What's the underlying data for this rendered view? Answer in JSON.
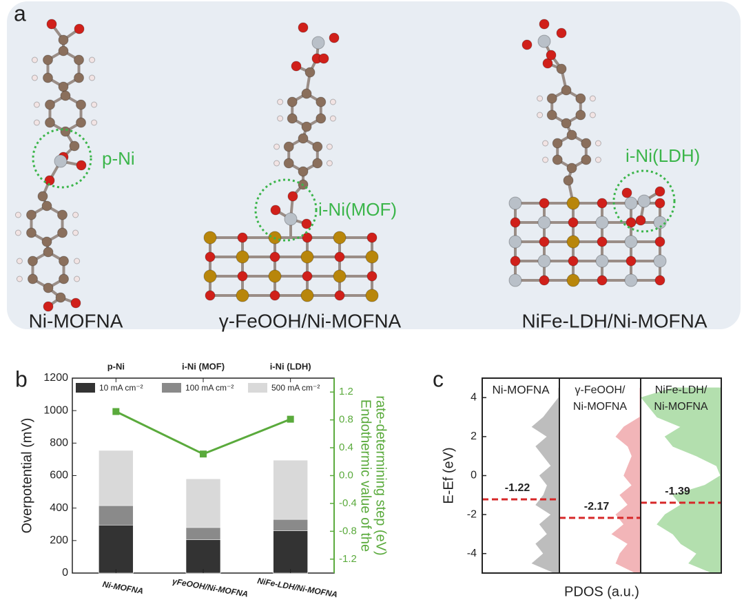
{
  "panel_a": {
    "letter": "a",
    "structures": [
      {
        "name": "Ni-MOFNA",
        "site": "p-Ni"
      },
      {
        "name": "γ-FeOOH/Ni-MOFNA",
        "site": "i-Ni(MOF)"
      },
      {
        "name": "NiFe-LDH/Ni-MOFNA",
        "site": "i-Ni(LDH)"
      }
    ]
  },
  "chart_data": [
    {
      "type": "bar",
      "panel": "b",
      "categories": [
        "Ni-MOFNA",
        "γFeOOH/Ni-MOFNA",
        "NiFe-LDH/Ni-MOFNA"
      ],
      "top_categories": [
        "p-Ni",
        "i-Ni (MOF)",
        "i-Ni (LDH)"
      ],
      "ylabel": "Overpotential (mV)",
      "y2label": [
        "Endothermic value of the",
        "rate-determining step (eV)"
      ],
      "ylim": [
        0,
        1200
      ],
      "yticks": [
        0,
        200,
        400,
        600,
        800,
        1000,
        1200
      ],
      "y2lim": [
        -1.4,
        1.4
      ],
      "y2ticks": [
        -1.2,
        -0.8,
        -0.4,
        {
          "value": 0,
          "label": "0.0"
        },
        0.4,
        0.8,
        1.2
      ],
      "series": [
        {
          "name": "10 mA cm⁻²",
          "color": "#333333",
          "values": [
            295,
            205,
            260
          ]
        },
        {
          "name": "100 mA cm⁻²",
          "color": "#8a8a8a",
          "values": [
            415,
            280,
            330
          ]
        },
        {
          "name": "500 mA cm⁻²",
          "color": "#d9d9d9",
          "values": [
            755,
            580,
            695
          ]
        }
      ],
      "line": {
        "color": "#5aaa3c",
        "axis": "y2",
        "values": [
          0.92,
          0.31,
          0.81
        ]
      }
    },
    {
      "type": "pdos",
      "panel": "c",
      "ylabel": "E-Ef (eV)",
      "xlabel": "PDOS (a.u.)",
      "ylim": [
        -5,
        5
      ],
      "yticks": [
        -4,
        -2,
        0,
        2,
        4
      ],
      "xlim": [
        0,
        1
      ],
      "energy": [
        -5,
        -4.5,
        -4,
        -3.5,
        -3,
        -2.5,
        -2,
        -1.5,
        -1,
        -0.5,
        0,
        0.5,
        1,
        1.5,
        2,
        2.5,
        3,
        3.5,
        4,
        4.5
      ],
      "series": [
        {
          "title": [
            "Ni-MOFNA"
          ],
          "color": "#bdbdbd",
          "d_band_center": -1.22,
          "values": [
            0.05,
            0.35,
            0.2,
            0.3,
            0.15,
            0.25,
            0.1,
            0.3,
            0.2,
            0.15,
            0.25,
            0.1,
            0.2,
            0.3,
            0.15,
            0.35,
            0.2,
            0.1,
            0,
            0
          ]
        },
        {
          "title": [
            "γ-FeOOH/",
            "Ni-MOFNA"
          ],
          "color": "#f2b5b8",
          "d_band_center": -2.17,
          "values": [
            0.05,
            0.3,
            0.25,
            0.15,
            0.35,
            0.2,
            0.3,
            0.15,
            0.25,
            0.1,
            0.2,
            0.15,
            0.1,
            0.15,
            0.3,
            0.2,
            0,
            0,
            0,
            0
          ]
        },
        {
          "title": [
            "NiFe-LDH/",
            "Ni-MOFNA"
          ],
          "color": "#b3dfae",
          "d_band_center": -1.39,
          "values": [
            0.1,
            0.4,
            0.3,
            0.5,
            0.6,
            0.8,
            0.7,
            0.5,
            0.6,
            0.2,
            0,
            0.05,
            0.3,
            0.6,
            0.7,
            0.5,
            0.8,
            0.9,
            1,
            0.6
          ]
        }
      ],
      "marker_color": "#d62728"
    }
  ]
}
